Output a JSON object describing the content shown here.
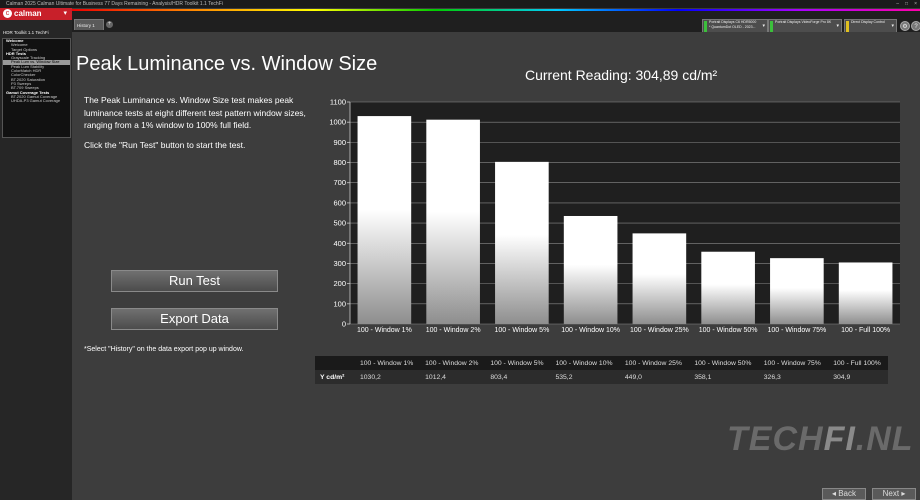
{
  "window": {
    "title": "Calman 2025 Calman Ultimate for Business 77 Days Remaining - Analysis/HDR Toolkit 1.1 TechFi",
    "controls": [
      "–",
      "□",
      "×"
    ]
  },
  "brand": {
    "logo_glyph": "c",
    "name": "calman",
    "menu_arrow": "▾"
  },
  "sidebar": {
    "title": "HDR Toolkit 1.1 TechFi",
    "items": [
      {
        "label": "Welcome",
        "type": "header"
      },
      {
        "label": "Welcome",
        "type": "item"
      },
      {
        "label": "Target Options",
        "type": "item"
      },
      {
        "label": "HDR Tests",
        "type": "header"
      },
      {
        "label": "Grayscale Tracking",
        "type": "item"
      },
      {
        "label": "Peak Lum vs. Window Size",
        "type": "item",
        "selected": true
      },
      {
        "label": "Peak Lum Stability",
        "type": "item"
      },
      {
        "label": "ColorMatch HDR",
        "type": "item"
      },
      {
        "label": "ColorChecker",
        "type": "item"
      },
      {
        "label": "BT.2020 Saturation",
        "type": "item"
      },
      {
        "label": "P3 Sweeps",
        "type": "item"
      },
      {
        "label": "BT.709 Sweeps",
        "type": "item"
      },
      {
        "label": "Gamut Coverage Tests",
        "type": "header"
      },
      {
        "label": "BT.2020 Gamut Coverage",
        "type": "item"
      },
      {
        "label": "UHDA-P3 Gamut Coverage",
        "type": "item"
      }
    ]
  },
  "tabs": [
    {
      "label": "History 1"
    }
  ],
  "tab_add": "+",
  "devices": [
    {
      "line1": "Portrait Displays C6 HDR5000",
      "line2": "* QuantumDot OLED - 2023...",
      "led": "#3cbf3c"
    },
    {
      "line1": "Portrait Displays VideoForge Pro 8K",
      "line2": "",
      "led": "#3cbf3c"
    },
    {
      "line1": "Direct Display Control",
      "line2": "",
      "led": "#e0c020"
    }
  ],
  "toolbar_icons": [
    "gear-icon",
    "help-icon"
  ],
  "toolbar_glyphs": {
    "settings": "⚙",
    "help": "?"
  },
  "page": {
    "title": "Peak Luminance vs. Window Size",
    "description_1": "The Peak Luminance vs. Window Size test makes peak luminance tests at eight different test pattern window sizes, ranging from a 1% window to 100% full field.",
    "description_2": "Click the \"Run Test\" button to start the test.",
    "run_test_label": "Run Test",
    "export_label": "Export  Data",
    "note": "*Select \"History\" on the data export pop up window.",
    "current_reading": "Current Reading: 304,89 cd/m²"
  },
  "chart_data": {
    "type": "bar",
    "categories": [
      "100 - Window  1%",
      "100 - Window  2%",
      "100 - Window  5%",
      "100 - Window 10%",
      "100 - Window 25%",
      "100 - Window 50%",
      "100 - Window 75%",
      "100 - Full  100%"
    ],
    "values": [
      1030.2,
      1012.4,
      803.4,
      535.2,
      449.0,
      358.1,
      326.3,
      304.9
    ],
    "ylim": [
      0,
      1100
    ],
    "yticks": [
      0,
      100,
      200,
      300,
      400,
      500,
      600,
      700,
      800,
      900,
      1000,
      1100
    ],
    "grid": true,
    "title": "",
    "xlabel": "",
    "ylabel": ""
  },
  "table": {
    "row_label": "Y cd/m²",
    "headers": [
      "100 - Window  1%",
      "100 - Window  2%",
      "100 - Window  5%",
      "100 - Window 10%",
      "100 - Window 25%",
      "100 - Window 50%",
      "100 - Window 75%",
      "100 - Full  100%"
    ],
    "values": [
      "1030,2",
      "1012,4",
      "803,4",
      "535,2",
      "449,0",
      "358,1",
      "326,3",
      "304,9"
    ]
  },
  "watermark": {
    "part1": "TECH",
    "part2": "FI",
    "part3": ".NL"
  },
  "footer": {
    "back_label": "◂ Back",
    "next_label": "Next ▸"
  }
}
